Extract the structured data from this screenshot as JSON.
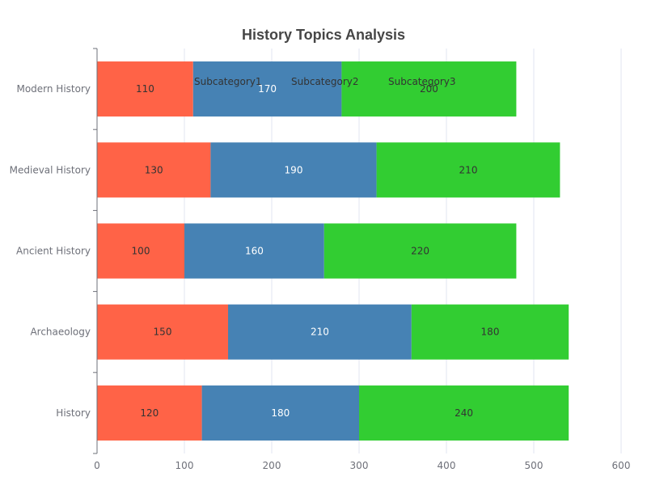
{
  "chart_data": {
    "type": "bar",
    "orientation": "horizontal",
    "stacked": true,
    "title": "History Topics Analysis",
    "categories": [
      "History",
      "Archaeology",
      "Ancient History",
      "Medieval History",
      "Modern History"
    ],
    "series": [
      {
        "name": "Subcategory1",
        "values": [
          120,
          150,
          100,
          130,
          110
        ],
        "color": "#ff6347",
        "label_color": "#333333"
      },
      {
        "name": "Subcategory2",
        "values": [
          180,
          210,
          160,
          190,
          170
        ],
        "color": "#4682b4",
        "label_color": "#ffffff"
      },
      {
        "name": "Subcategory3",
        "values": [
          240,
          180,
          220,
          210,
          200
        ],
        "color": "#32cd32",
        "label_color": "#333333"
      }
    ],
    "xlim": [
      0,
      600
    ],
    "x_ticks": [
      0,
      100,
      200,
      300,
      400,
      500,
      600
    ],
    "grid": true,
    "legend_position": "top"
  },
  "colors": {
    "grid": "#e0e6f1",
    "axis": "#6e7079"
  }
}
